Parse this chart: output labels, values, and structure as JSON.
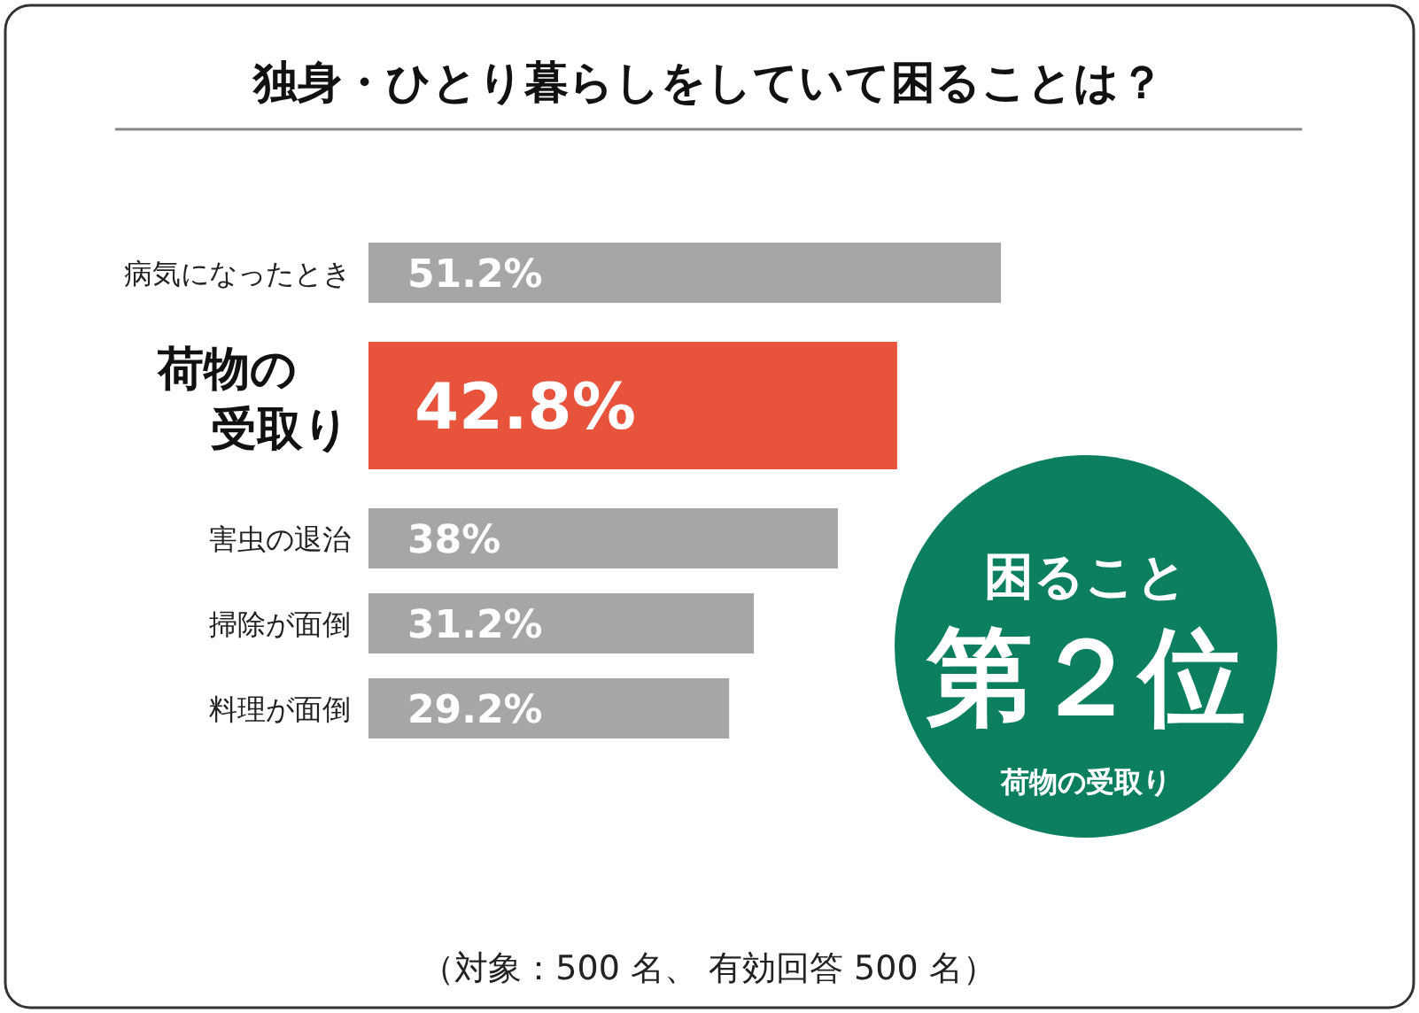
{
  "chart_data": {
    "type": "bar",
    "orientation": "horizontal",
    "title": "独身・ひとり暮らしをしていて困ることは？",
    "categories": [
      "病気になったとき",
      "荷物の受取り",
      "害虫の退治",
      "掃除が面倒",
      "料理が面倒"
    ],
    "values": [
      51.2,
      42.8,
      38,
      31.2,
      29.2
    ],
    "colors": [
      "#a6a6a6",
      "#e8533c",
      "#a6a6a6",
      "#a6a6a6",
      "#a6a6a6"
    ],
    "value_labels": [
      "51.2%",
      "42.8%",
      "38%",
      "31.2%",
      "29.2%"
    ],
    "annotations": [
      "困ること",
      "第２位",
      "荷物の受取り",
      "（対象：500 名、 有効回答 500 名）"
    ]
  }
}
